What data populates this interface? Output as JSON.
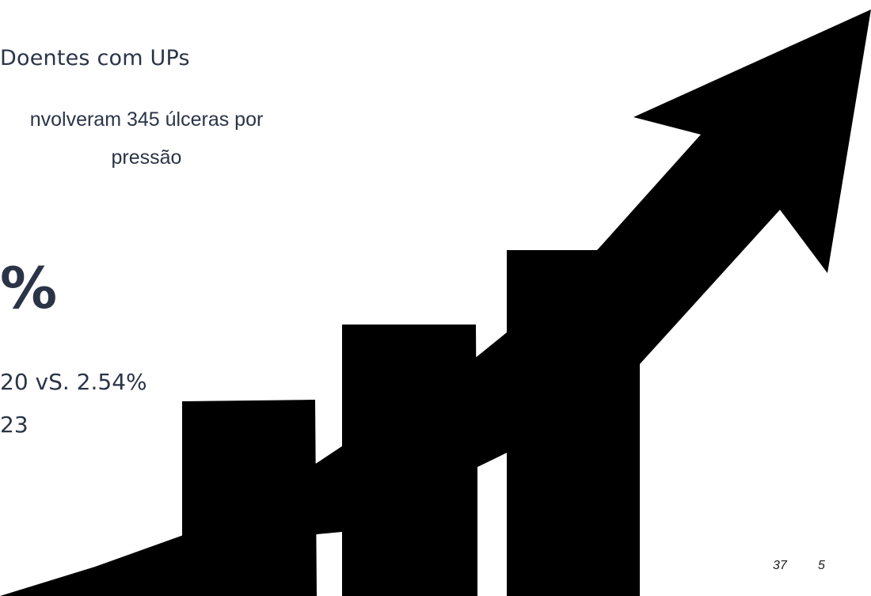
{
  "slide": {
    "heading": "Doentes com UPs",
    "description": "nvolveram 345 úlceras por pressão",
    "percent": "%",
    "comparison_line1": "20 vS. 2.54%",
    "comparison_line2": "23",
    "page_number_a": "37",
    "page_number_b": "5"
  },
  "graphic": {
    "icon": "growth-chart-arrow-icon",
    "color": "#000000"
  },
  "colors": {
    "text": "#2b3447",
    "background": "#ffffff"
  }
}
